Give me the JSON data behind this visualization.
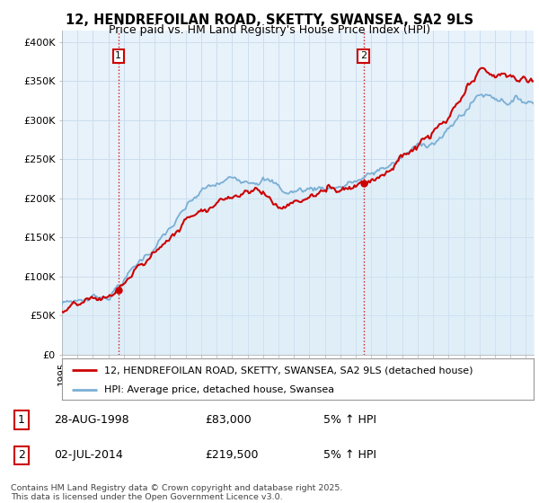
{
  "title": "12, HENDREFOILAN ROAD, SKETTY, SWANSEA, SA2 9LS",
  "subtitle": "Price paid vs. HM Land Registry's House Price Index (HPI)",
  "ylabel_ticks": [
    "£0",
    "£50K",
    "£100K",
    "£150K",
    "£200K",
    "£250K",
    "£300K",
    "£350K",
    "£400K"
  ],
  "ytick_values": [
    0,
    50000,
    100000,
    150000,
    200000,
    250000,
    300000,
    350000,
    400000
  ],
  "ylim": [
    0,
    415000
  ],
  "xlim_start": 1995.0,
  "xlim_end": 2025.5,
  "sale1_date": 1998.65,
  "sale1_price": 83000,
  "sale2_date": 2014.5,
  "sale2_price": 219500,
  "price_line_color": "#cc0000",
  "hpi_line_color": "#7aafd4",
  "hpi_fill_color": "#d6e8f5",
  "sale_marker_color": "#cc0000",
  "vline_color": "#cc0000",
  "background_color": "#ffffff",
  "grid_color": "#ccddee",
  "chart_bg_color": "#e8f2fb",
  "legend1_label": "12, HENDREFOILAN ROAD, SKETTY, SWANSEA, SA2 9LS (detached house)",
  "legend2_label": "HPI: Average price, detached house, Swansea",
  "transaction1_label": "1",
  "transaction1_date_str": "28-AUG-1998",
  "transaction1_price_str": "£83,000",
  "transaction1_hpi_str": "5% ↑ HPI",
  "transaction2_label": "2",
  "transaction2_date_str": "02-JUL-2014",
  "transaction2_price_str": "£219,500",
  "transaction2_hpi_str": "5% ↑ HPI",
  "footer_text": "Contains HM Land Registry data © Crown copyright and database right 2025.\nThis data is licensed under the Open Government Licence v3.0.",
  "title_fontsize": 10.5,
  "subtitle_fontsize": 9,
  "label_fontsize": 8,
  "font_family": "DejaVu Sans"
}
